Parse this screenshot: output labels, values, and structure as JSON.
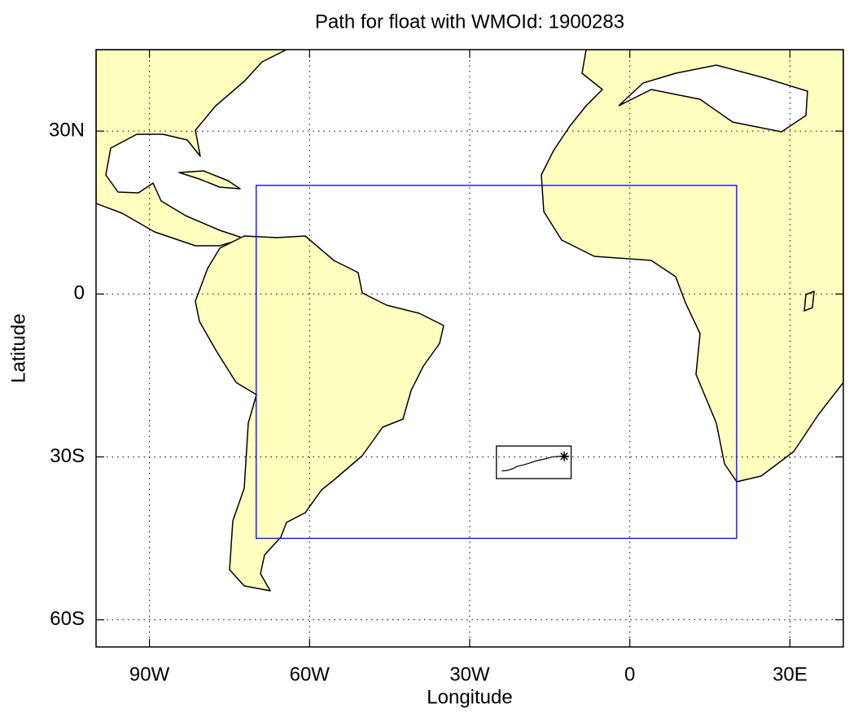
{
  "chart_data": {
    "type": "map",
    "title": "Path for float with WMOId: 1900283",
    "xlabel": "Longitude",
    "ylabel": "Latitude",
    "xlim": [
      -100,
      40
    ],
    "ylim": [
      -65,
      45
    ],
    "xticks": [
      {
        "value": -90,
        "label": "90W"
      },
      {
        "value": -60,
        "label": "60W"
      },
      {
        "value": -30,
        "label": "30W"
      },
      0,
      {
        "value": 30,
        "label": "30E"
      }
    ],
    "yticks": [
      {
        "value": 30,
        "label": "30N"
      },
      0,
      {
        "value": -30,
        "label": "30S"
      },
      {
        "value": -60,
        "label": "60S"
      }
    ],
    "grid": true,
    "land_color": "#ffffc0",
    "region_box": {
      "color": "#0000ff",
      "lon": [
        -70,
        20
      ],
      "lat": [
        20,
        -45
      ]
    },
    "float_box": {
      "color": "#000000",
      "lon": [
        -25,
        -11
      ],
      "lat": [
        -28,
        -34
      ]
    },
    "float_path": {
      "color": "#000000",
      "lon": [
        -12.3,
        -13,
        -14.5,
        -16,
        -17.5,
        -19,
        -20,
        -21,
        -22,
        -23,
        -24
      ],
      "lat": [
        -29.9,
        -29.9,
        -30,
        -30.4,
        -30.7,
        -31.2,
        -31.5,
        -31.7,
        -32.2,
        -32.5,
        -32.6
      ]
    }
  }
}
